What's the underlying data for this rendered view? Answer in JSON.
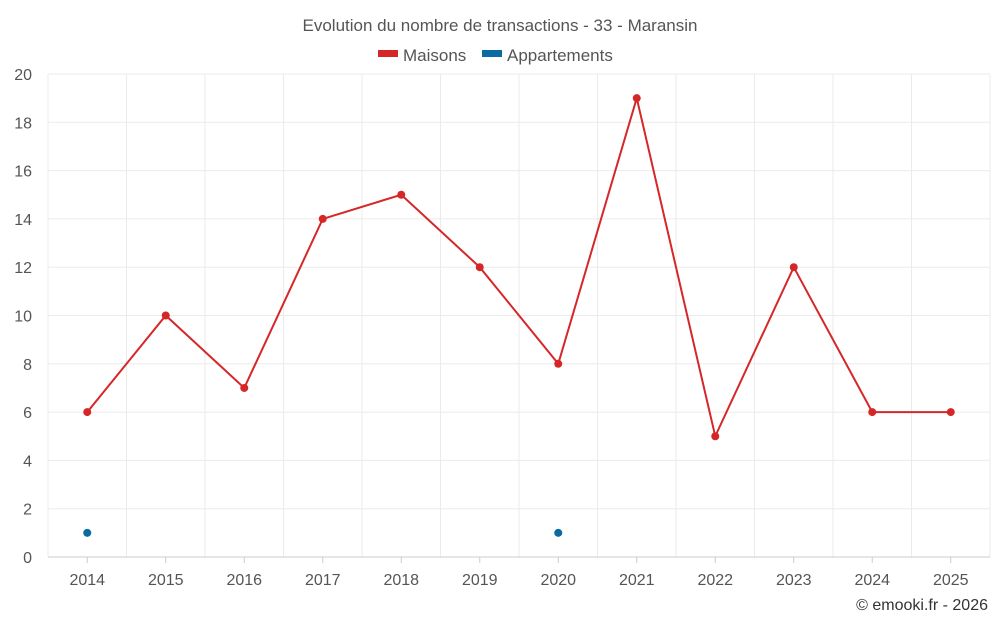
{
  "chart_data": {
    "type": "line",
    "title": "Evolution du nombre de transactions - 33 - Maransin",
    "categories": [
      "2014",
      "2015",
      "2016",
      "2017",
      "2018",
      "2019",
      "2020",
      "2021",
      "2022",
      "2023",
      "2024",
      "2025"
    ],
    "series": [
      {
        "name": "Maisons",
        "color": "#d62728",
        "values": [
          6,
          10,
          7,
          14,
          15,
          12,
          8,
          19,
          5,
          12,
          6,
          6
        ]
      },
      {
        "name": "Appartements",
        "color": "#0b6aa2",
        "values": [
          1,
          null,
          null,
          null,
          null,
          null,
          1,
          null,
          null,
          null,
          null,
          null
        ]
      }
    ],
    "ylim": [
      0,
      20
    ],
    "yticks": [
      0,
      2,
      4,
      6,
      8,
      10,
      12,
      14,
      16,
      18,
      20
    ],
    "grid": true,
    "legend_position": "top-center",
    "xlabel": "",
    "ylabel": ""
  },
  "credit": "© emooki.fr - 2026"
}
